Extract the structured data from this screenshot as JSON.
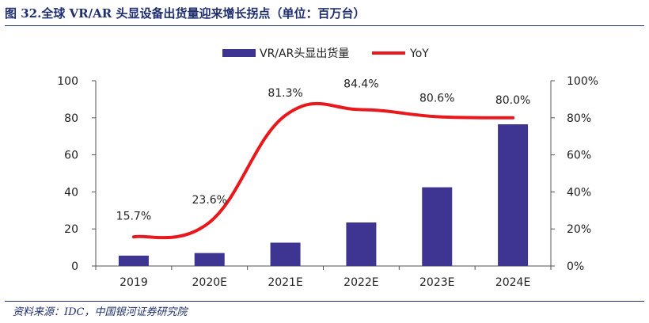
{
  "figure": {
    "title": "图 32.全球 VR/AR 头显设备出货量迎来增长拐点（单位：百万台）",
    "source": "资料来源：IDC，中国银河证券研究院"
  },
  "chart_data": {
    "type": "bar",
    "categories": [
      "2019",
      "2020E",
      "2021E",
      "2022E",
      "2023E",
      "2024E"
    ],
    "series": [
      {
        "name": "VR/AR头显出货量",
        "type": "bar",
        "axis": "left",
        "color": "#3d3591",
        "values": [
          5.6,
          7.0,
          12.6,
          23.5,
          42.5,
          76.5
        ]
      },
      {
        "name": "YoY",
        "type": "line",
        "axis": "right",
        "color": "#e8181c",
        "values": [
          15.7,
          23.6,
          81.3,
          84.4,
          80.6,
          80.0
        ],
        "labels": [
          "15.7%",
          "23.6%",
          "81.3%",
          "84.4%",
          "80.6%",
          "80.0%"
        ]
      }
    ],
    "y_left": {
      "ylim": [
        0,
        100
      ],
      "ticks": [
        "0",
        "20",
        "40",
        "60",
        "80",
        "100"
      ]
    },
    "y_right": {
      "ylim": [
        0,
        100
      ],
      "ticks": [
        "0%",
        "20%",
        "40%",
        "60%",
        "80%",
        "100%"
      ]
    },
    "legend_position": "top-center",
    "grid": false
  }
}
